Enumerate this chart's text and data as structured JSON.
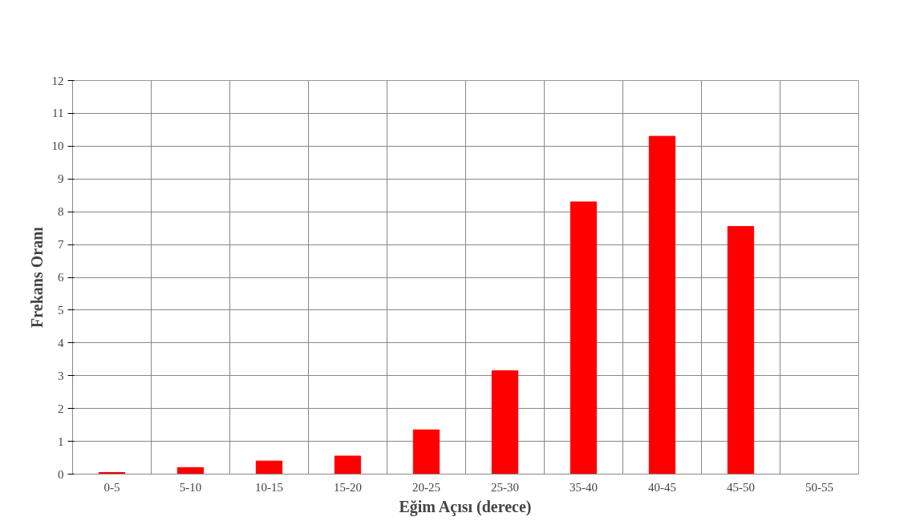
{
  "chart_data": {
    "type": "bar",
    "xlabel": "Eğim Açısı (derece)",
    "ylabel": "Frekans Oranı",
    "categories": [
      "0-5",
      "5-10",
      "10-15",
      "15-20",
      "20-25",
      "25-30",
      "35-40",
      "40-45",
      "45-50",
      "50-55"
    ],
    "values": [
      0.05,
      0.2,
      0.4,
      0.55,
      1.35,
      3.15,
      8.3,
      10.3,
      7.55,
      0
    ],
    "color": "#ff0000",
    "ylim": [
      0,
      12
    ],
    "yticks": [
      0,
      1,
      2,
      3,
      4,
      5,
      6,
      7,
      8,
      9,
      10,
      11,
      12
    ],
    "grid": true
  }
}
